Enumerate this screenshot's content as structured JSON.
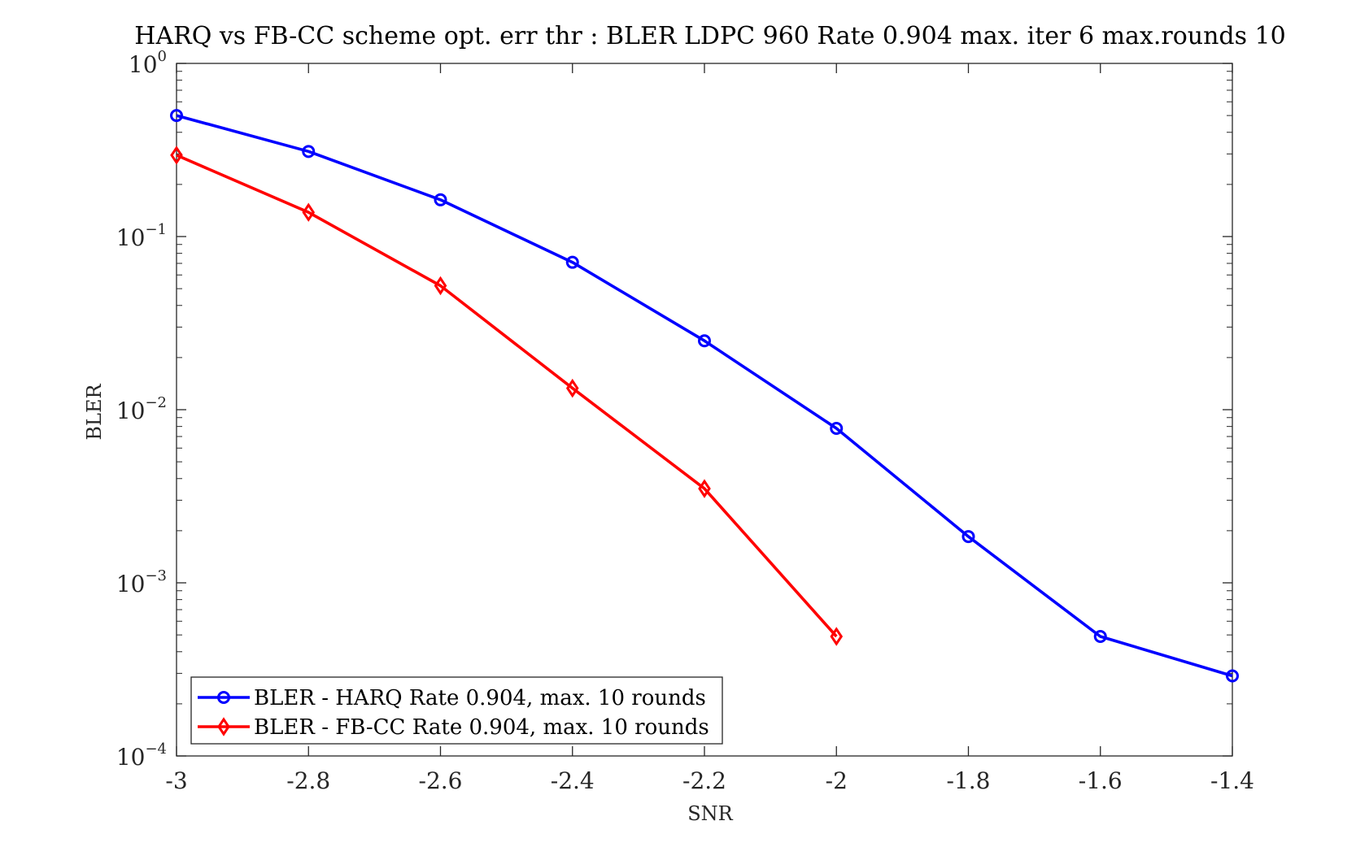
{
  "chart_data": {
    "type": "line",
    "title": "HARQ vs FB-CC scheme opt. err thr : BLER LDPC 960 Rate 0.904 max. iter 6 max.rounds 10",
    "xlabel": "SNR",
    "ylabel": "BLER",
    "xlim": [
      -3,
      -1.4
    ],
    "ylim": [
      0.0001,
      1
    ],
    "yscale": "log",
    "grid": false,
    "legend_position": "bottom-left",
    "x_ticks": [
      -3,
      -2.8,
      -2.6,
      -2.4,
      -2.2,
      -2,
      -1.8,
      -1.6,
      -1.4
    ],
    "x_tick_labels": [
      "-3",
      "-2.8",
      "-2.6",
      "-2.4",
      "-2.2",
      "-2",
      "-1.8",
      "-1.6",
      "-1.4"
    ],
    "y_ticks": [
      {
        "value": 1,
        "base": "10",
        "exp": "0"
      },
      {
        "value": 0.1,
        "base": "10",
        "exp": "−1"
      },
      {
        "value": 0.01,
        "base": "10",
        "exp": "−2"
      },
      {
        "value": 0.001,
        "base": "10",
        "exp": "−3"
      },
      {
        "value": 0.0001,
        "base": "10",
        "exp": "−4"
      }
    ],
    "series": [
      {
        "name": "BLER - HARQ Rate 0.904, max. 10 rounds",
        "color": "#0000ff",
        "marker": "circle",
        "x": [
          -3,
          -2.8,
          -2.6,
          -2.4,
          -2.2,
          -2,
          -1.8,
          -1.6,
          -1.4
        ],
        "y": [
          0.5,
          0.31,
          0.163,
          0.071,
          0.025,
          0.0078,
          0.00185,
          0.00049,
          0.00029
        ]
      },
      {
        "name": "BLER - FB-CC Rate 0.904, max. 10 rounds",
        "color": "#ff0000",
        "marker": "diamond",
        "x": [
          -3,
          -2.8,
          -2.6,
          -2.4,
          -2.2,
          -2
        ],
        "y": [
          0.295,
          0.138,
          0.052,
          0.0133,
          0.0035,
          0.00049
        ]
      }
    ]
  }
}
